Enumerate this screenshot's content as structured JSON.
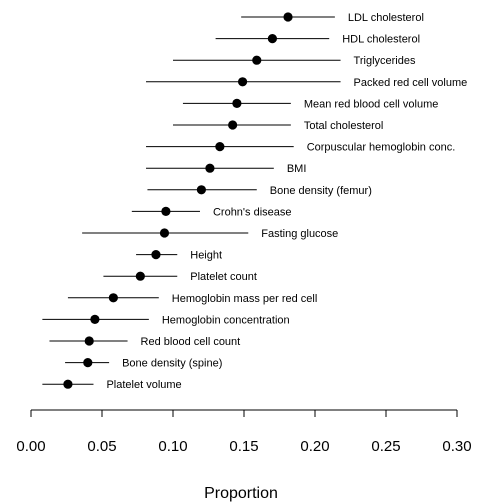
{
  "chart_data": {
    "type": "scatter",
    "title": "",
    "xlabel": "Proportion",
    "ylabel": "",
    "xlim": [
      0,
      0.3
    ],
    "xticks": [
      0.0,
      0.05,
      0.1,
      0.15,
      0.2,
      0.25,
      0.3
    ],
    "xtick_labels": [
      "0.00",
      "0.05",
      "0.10",
      "0.15",
      "0.20",
      "0.25",
      "0.30"
    ],
    "grid": false,
    "error_bars": "horizontal",
    "points": [
      {
        "label": "LDL cholesterol",
        "value": 0.181,
        "lower": 0.148,
        "upper": 0.214
      },
      {
        "label": "HDL cholesterol",
        "value": 0.17,
        "lower": 0.13,
        "upper": 0.21
      },
      {
        "label": "Triglycerides",
        "value": 0.159,
        "lower": 0.1,
        "upper": 0.218
      },
      {
        "label": "Packed red cell volume",
        "value": 0.149,
        "lower": 0.081,
        "upper": 0.218
      },
      {
        "label": "Mean red blood cell volume",
        "value": 0.145,
        "lower": 0.107,
        "upper": 0.183
      },
      {
        "label": "Total cholesterol",
        "value": 0.142,
        "lower": 0.1,
        "upper": 0.183
      },
      {
        "label": "Corpuscular hemoglobin conc.",
        "value": 0.133,
        "lower": 0.081,
        "upper": 0.185
      },
      {
        "label": "BMI",
        "value": 0.126,
        "lower": 0.081,
        "upper": 0.171
      },
      {
        "label": "Bone density (femur)",
        "value": 0.12,
        "lower": 0.082,
        "upper": 0.159
      },
      {
        "label": "Crohn's disease",
        "value": 0.095,
        "lower": 0.071,
        "upper": 0.119
      },
      {
        "label": "Fasting glucose",
        "value": 0.094,
        "lower": 0.036,
        "upper": 0.153
      },
      {
        "label": "Height",
        "value": 0.088,
        "lower": 0.074,
        "upper": 0.103
      },
      {
        "label": "Platelet count",
        "value": 0.077,
        "lower": 0.051,
        "upper": 0.103
      },
      {
        "label": "Hemoglobin mass per red cell",
        "value": 0.058,
        "lower": 0.026,
        "upper": 0.09
      },
      {
        "label": "Hemoglobin concentration",
        "value": 0.045,
        "lower": 0.008,
        "upper": 0.083
      },
      {
        "label": "Red blood cell count",
        "value": 0.041,
        "lower": 0.013,
        "upper": 0.068
      },
      {
        "label": "Bone density (spine)",
        "value": 0.04,
        "lower": 0.024,
        "upper": 0.055
      },
      {
        "label": "Platelet volume",
        "value": 0.026,
        "lower": 0.008,
        "upper": 0.044
      }
    ]
  }
}
